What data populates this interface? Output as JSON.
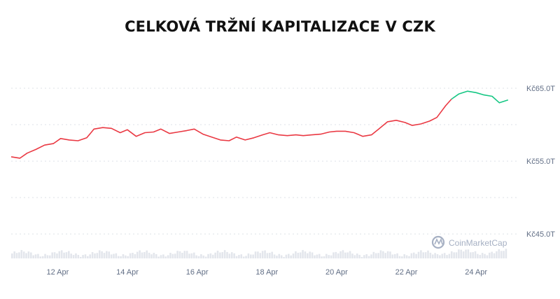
{
  "title": "CELKOVÁ TRŽNÍ KAPITALIZACE V CZK",
  "watermark": "CoinMarketCap",
  "colors": {
    "down": "#ea3943",
    "up": "#16c784",
    "volume": "#e3e6ec",
    "grid": "#dde1e7",
    "tick": "#616e85"
  },
  "chart_data": {
    "type": "line",
    "title": "CELKOVÁ TRŽNÍ KAPITALIZACE V CZK",
    "xlabel": "",
    "ylabel": "",
    "y_unit": "Kč T",
    "xlim": [
      "2023-04-10T16:00",
      "2023-04-25T00:00"
    ],
    "ylim": [
      43.0,
      67.5
    ],
    "grid": "horizontal",
    "legend": "none",
    "x_ticks": [
      {
        "date": "2023-04-12",
        "label": "12 Apr"
      },
      {
        "date": "2023-04-14",
        "label": "14 Apr"
      },
      {
        "date": "2023-04-16",
        "label": "16 Apr"
      },
      {
        "date": "2023-04-18",
        "label": "18 Apr"
      },
      {
        "date": "2023-04-20",
        "label": "20 Apr"
      },
      {
        "date": "2023-04-22",
        "label": "22 Apr"
      },
      {
        "date": "2023-04-24",
        "label": "24 Apr"
      }
    ],
    "y_ticks": [
      {
        "value": 65,
        "label": "Kč65.0T"
      },
      {
        "value": 55,
        "label": "Kč55.0T"
      },
      {
        "value": 45,
        "label": "Kč45.0T"
      }
    ],
    "series": [
      {
        "color": "#ea3943",
        "points": [
          [
            "2023-04-10T16:00",
            55.6
          ],
          [
            "2023-04-10T22:00",
            55.4
          ],
          [
            "2023-04-11T03:00",
            56.1
          ],
          [
            "2023-04-11T09:00",
            56.6
          ],
          [
            "2023-04-11T15:00",
            57.2
          ],
          [
            "2023-04-11T21:00",
            57.4
          ],
          [
            "2023-04-12T02:00",
            58.1
          ],
          [
            "2023-04-12T08:00",
            57.9
          ],
          [
            "2023-04-12T14:00",
            57.8
          ],
          [
            "2023-04-12T20:00",
            58.2
          ],
          [
            "2023-04-13T01:00",
            59.4
          ],
          [
            "2023-04-13T07:00",
            59.6
          ],
          [
            "2023-04-13T13:00",
            59.5
          ],
          [
            "2023-04-13T19:00",
            58.9
          ],
          [
            "2023-04-14T00:00",
            59.3
          ],
          [
            "2023-04-14T06:00",
            58.4
          ],
          [
            "2023-04-14T12:00",
            58.9
          ],
          [
            "2023-04-14T18:00",
            59.0
          ],
          [
            "2023-04-14T23:00",
            59.4
          ],
          [
            "2023-04-15T05:00",
            58.8
          ],
          [
            "2023-04-15T11:00",
            59.0
          ],
          [
            "2023-04-15T17:00",
            59.2
          ],
          [
            "2023-04-15T22:00",
            59.4
          ],
          [
            "2023-04-16T04:00",
            58.7
          ],
          [
            "2023-04-16T10:00",
            58.3
          ],
          [
            "2023-04-16T16:00",
            57.9
          ],
          [
            "2023-04-16T22:00",
            57.8
          ],
          [
            "2023-04-17T03:00",
            58.3
          ],
          [
            "2023-04-17T09:00",
            57.9
          ],
          [
            "2023-04-17T15:00",
            58.2
          ],
          [
            "2023-04-17T21:00",
            58.6
          ],
          [
            "2023-04-18T02:00",
            58.9
          ],
          [
            "2023-04-18T08:00",
            58.6
          ],
          [
            "2023-04-18T14:00",
            58.5
          ],
          [
            "2023-04-18T20:00",
            58.6
          ],
          [
            "2023-04-19T01:00",
            58.5
          ],
          [
            "2023-04-19T07:00",
            58.6
          ],
          [
            "2023-04-19T13:00",
            58.7
          ],
          [
            "2023-04-19T19:00",
            59.0
          ],
          [
            "2023-04-20T00:00",
            59.1
          ],
          [
            "2023-04-20T06:00",
            59.1
          ],
          [
            "2023-04-20T12:00",
            58.9
          ],
          [
            "2023-04-20T18:00",
            58.4
          ],
          [
            "2023-04-21T00:00",
            58.6
          ],
          [
            "2023-04-21T05:00",
            59.4
          ],
          [
            "2023-04-21T11:00",
            60.4
          ],
          [
            "2023-04-21T17:00",
            60.6
          ],
          [
            "2023-04-21T23:00",
            60.3
          ],
          [
            "2023-04-22T04:00",
            59.9
          ],
          [
            "2023-04-22T10:00",
            60.1
          ],
          [
            "2023-04-22T16:00",
            60.5
          ],
          [
            "2023-04-22T21:00",
            61.0
          ],
          [
            "2023-04-23T03:00",
            62.6
          ],
          [
            "2023-04-23T07:00",
            63.5
          ]
        ]
      },
      {
        "color": "#16c784",
        "points": [
          [
            "2023-04-23T07:00",
            63.5
          ],
          [
            "2023-04-23T12:00",
            64.2
          ],
          [
            "2023-04-23T18:00",
            64.6
          ],
          [
            "2023-04-24T00:00",
            64.4
          ],
          [
            "2023-04-24T05:00",
            64.1
          ],
          [
            "2023-04-24T11:00",
            63.9
          ],
          [
            "2023-04-24T16:00",
            63.0
          ],
          [
            "2023-04-24T22:00",
            63.4
          ]
        ]
      }
    ]
  }
}
